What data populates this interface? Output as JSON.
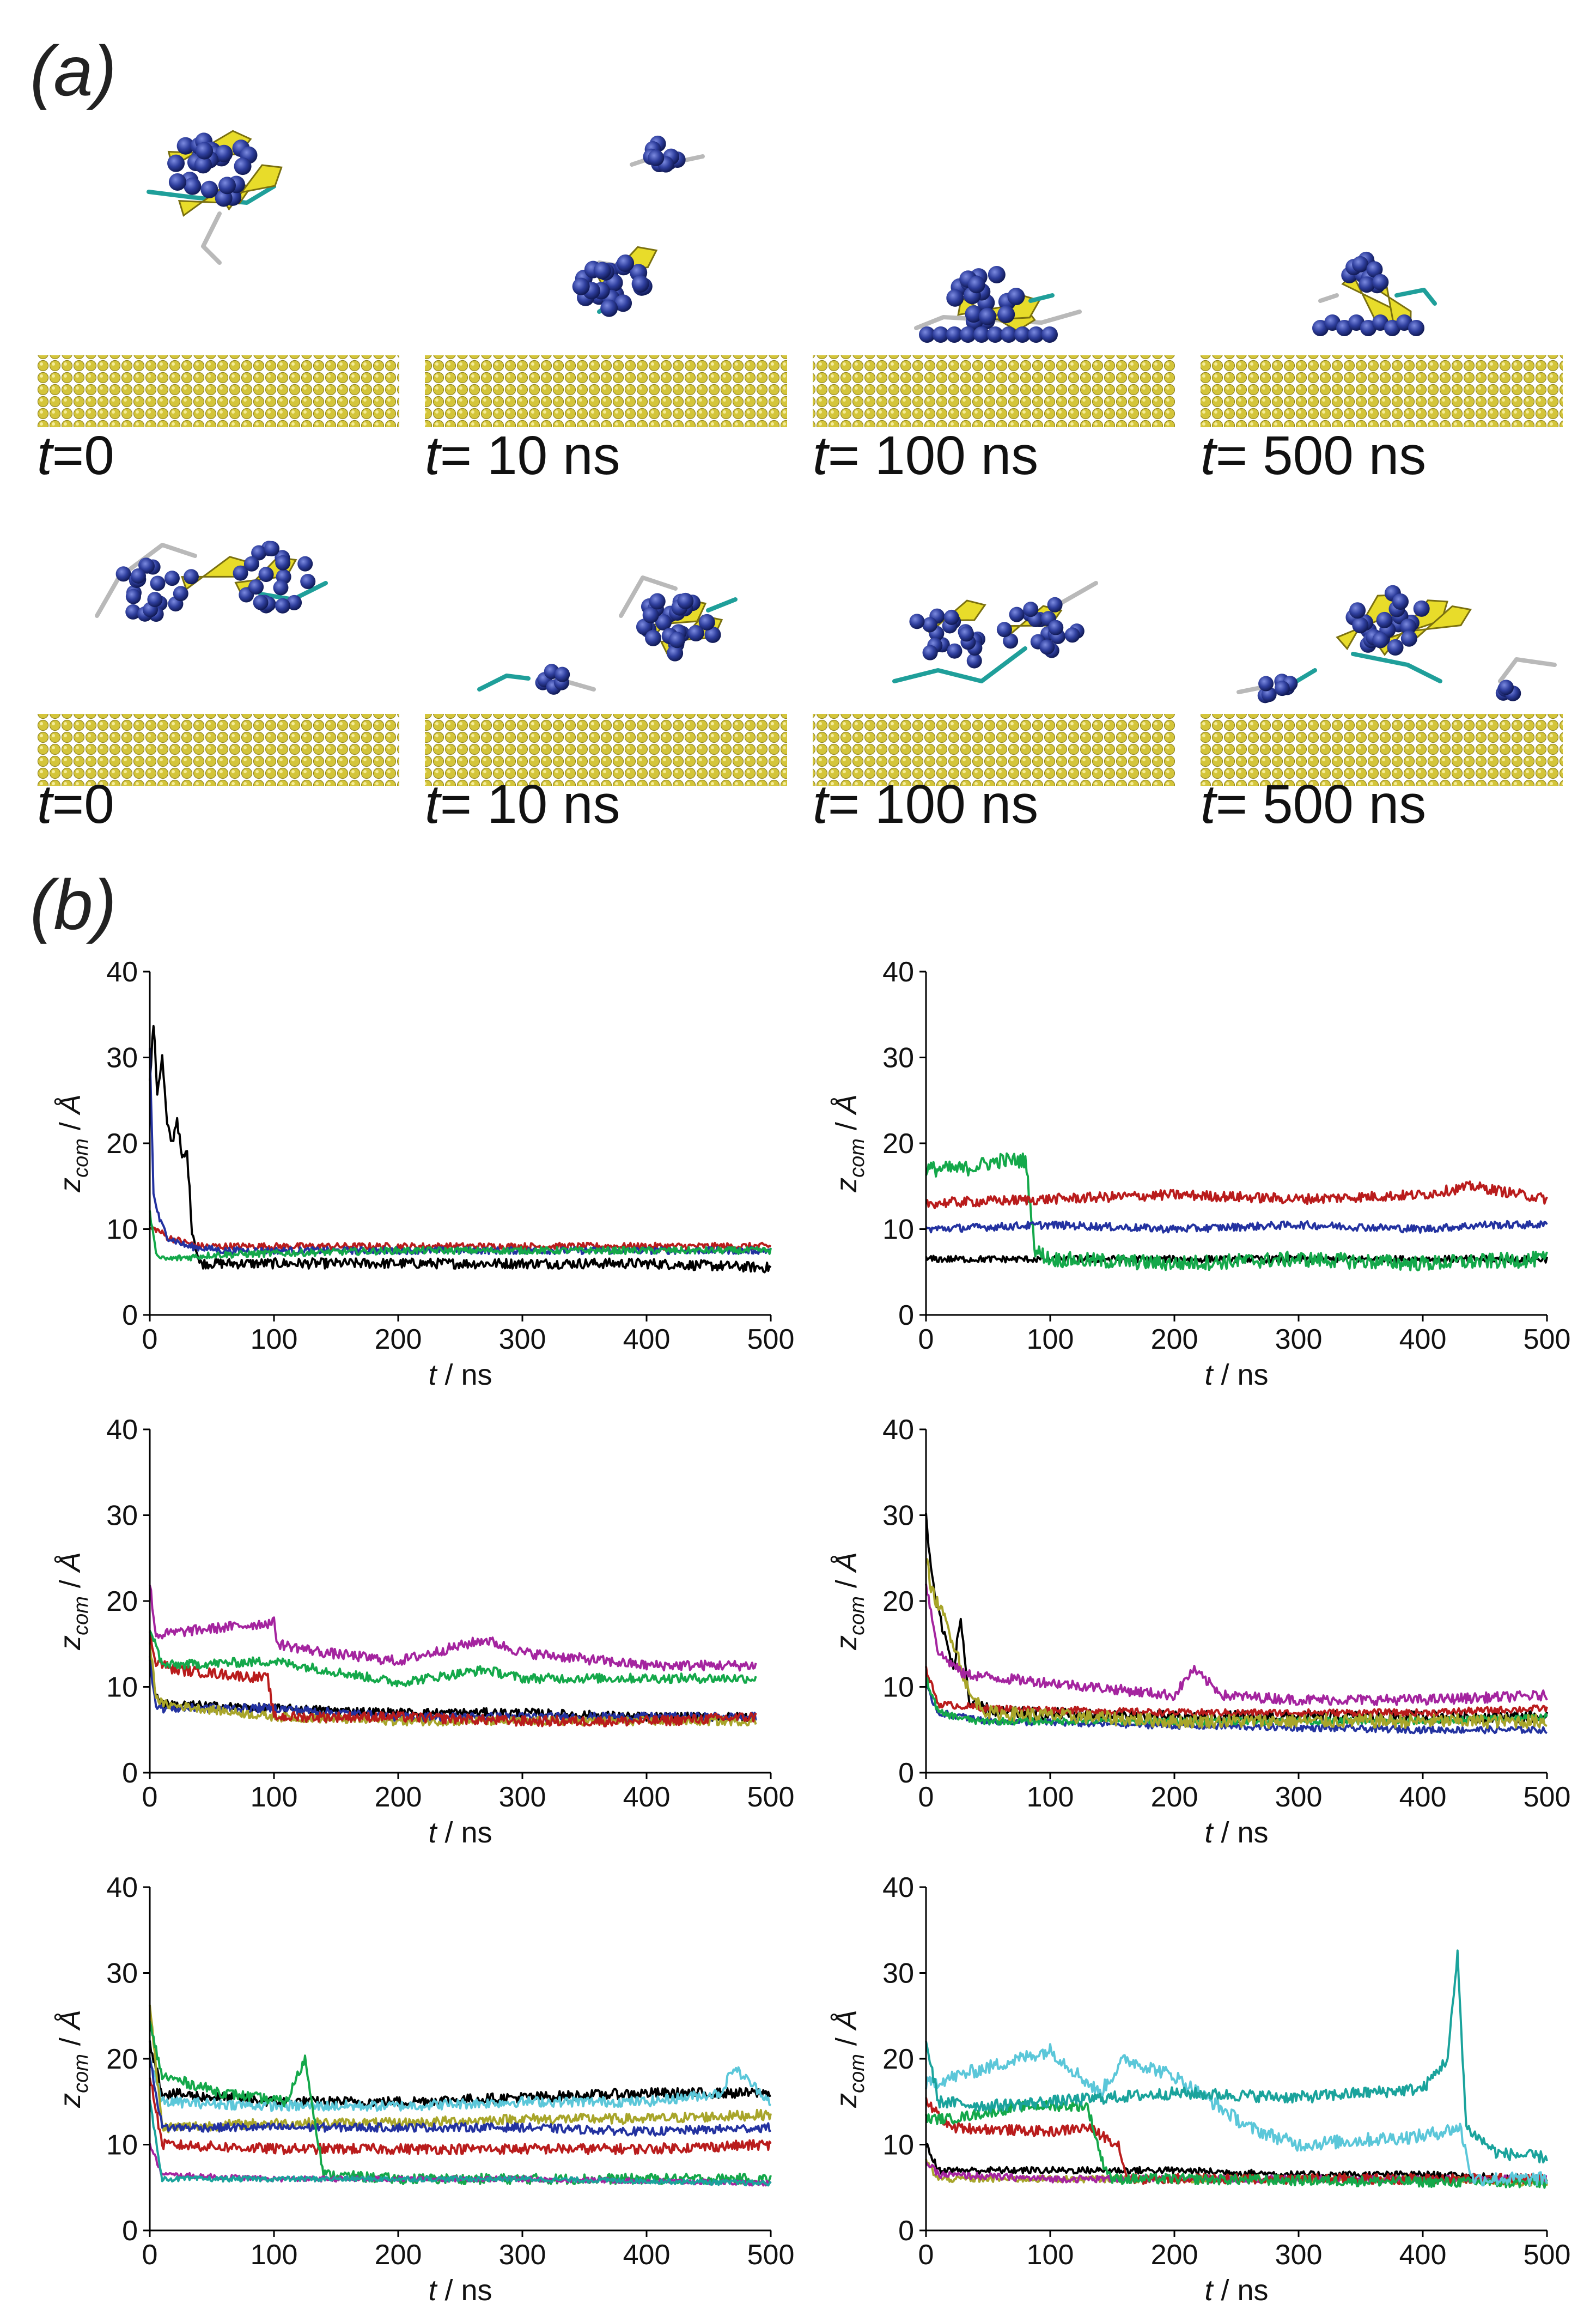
{
  "figure": {
    "panel_a_label": "(a)",
    "panel_b_label": "(b)"
  },
  "snapshots": {
    "rows": [
      {
        "frames": [
          {
            "var": "t",
            "value": "=0",
            "cluster": "compact-sheet"
          },
          {
            "var": "t",
            "value": "= 10 ns",
            "cluster": "split-peptide"
          },
          {
            "var": "t",
            "value": "= 100 ns",
            "cluster": "flat-adsorbed"
          },
          {
            "var": "t",
            "value": "= 500 ns",
            "cluster": "tower-adsorbed"
          }
        ]
      },
      {
        "frames": [
          {
            "var": "t",
            "value": "=0",
            "cluster": "extended-pair"
          },
          {
            "var": "t",
            "value": "= 10 ns",
            "cluster": "detached-peptide"
          },
          {
            "var": "t",
            "value": "= 100 ns",
            "cluster": "spread-adsorbed"
          },
          {
            "var": "t",
            "value": "= 500 ns",
            "cluster": "scattered-adsorbed"
          }
        ]
      }
    ],
    "colors": {
      "surface_atom": "#d4c53a",
      "residue_bead": "#2f3f9e",
      "strand": "#e8dc2a",
      "coil": "#b9b9b9",
      "turn": "#1f9f9a"
    }
  },
  "chart_data": [
    {
      "type": "line",
      "id": "b1",
      "xlabel": "t / ns",
      "ylabel": "z_com / Å",
      "xlim": [
        0,
        500
      ],
      "ylim": [
        0,
        40
      ],
      "xticks": [
        "0",
        "100",
        "200",
        "300",
        "400",
        "500"
      ],
      "yticks": [
        "0",
        "10",
        "20",
        "30",
        "40"
      ],
      "series": [
        {
          "name": "black",
          "color": "#000000",
          "x": [
            0,
            3,
            6,
            10,
            14,
            18,
            22,
            26,
            30,
            34,
            40,
            60,
            100,
            200,
            300,
            400,
            500
          ],
          "y": [
            27,
            34,
            26,
            30,
            22,
            20,
            23,
            18,
            19,
            10,
            6,
            6,
            6,
            6,
            6,
            6,
            5.5
          ],
          "noise": 0.6
        },
        {
          "name": "red",
          "color": "#b91c1c",
          "x": [
            0,
            5,
            15,
            40,
            100,
            300,
            500
          ],
          "y": [
            10,
            10,
            9,
            8,
            8,
            8,
            8
          ],
          "noise": 0.4
        },
        {
          "name": "blue",
          "color": "#2332a0",
          "x": [
            0,
            3,
            8,
            15,
            30,
            60,
            200,
            500
          ],
          "y": [
            31,
            14,
            11,
            9,
            8,
            7.5,
            7.5,
            7.5
          ],
          "noise": 0.4
        },
        {
          "name": "green",
          "color": "#14a84a",
          "x": [
            0,
            4,
            8,
            15,
            50,
            200,
            350,
            500
          ],
          "y": [
            12,
            8,
            6.5,
            6.5,
            7,
            7.5,
            7.5,
            7.5
          ],
          "noise": 0.4
        }
      ]
    },
    {
      "type": "line",
      "id": "b2",
      "xlabel": "t / ns",
      "ylabel": "z_com / Å",
      "xlim": [
        0,
        500
      ],
      "ylim": [
        0,
        40
      ],
      "xticks": [
        "0",
        "100",
        "200",
        "300",
        "400",
        "500"
      ],
      "yticks": [
        "0",
        "10",
        "20",
        "30",
        "40"
      ],
      "series": [
        {
          "name": "black",
          "color": "#000000",
          "x": [
            0,
            90,
            120,
            300,
            500
          ],
          "y": [
            6.5,
            6.5,
            6.5,
            6.5,
            6.5
          ],
          "noise": 0.4
        },
        {
          "name": "green",
          "color": "#14a84a",
          "x": [
            0,
            30,
            60,
            80,
            88,
            100,
            200,
            300,
            400,
            500
          ],
          "y": [
            17,
            17,
            18,
            18,
            7.5,
            6.5,
            6,
            6.5,
            6,
            6.5
          ],
          "noise": 0.9
        },
        {
          "name": "red",
          "color": "#b91c1c",
          "x": [
            0,
            100,
            200,
            300,
            400,
            440,
            500
          ],
          "y": [
            13,
            13.5,
            14,
            13.5,
            14,
            15,
            13.5
          ],
          "noise": 0.6
        },
        {
          "name": "blue",
          "color": "#2332a0",
          "x": [
            0,
            100,
            200,
            300,
            400,
            450,
            500
          ],
          "y": [
            10,
            10.5,
            10,
            10.5,
            10,
            10.5,
            10.5
          ],
          "noise": 0.45
        }
      ]
    },
    {
      "type": "line",
      "id": "b3",
      "xlabel": "t / ns",
      "ylabel": "z_com / Å",
      "xlim": [
        0,
        500
      ],
      "ylim": [
        0,
        40
      ],
      "xticks": [
        "0",
        "100",
        "200",
        "300",
        "400",
        "500"
      ],
      "yticks": [
        "0",
        "10",
        "20",
        "30",
        "40"
      ],
      "series": [
        {
          "name": "black",
          "color": "#000000",
          "x": [
            0,
            5,
            10,
            100,
            200,
            300,
            400,
            488
          ],
          "y": [
            14,
            9,
            8,
            7.5,
            7,
            7,
            6.5,
            6.5
          ],
          "noise": 0.5
        },
        {
          "name": "blue",
          "color": "#2332a0",
          "x": [
            0,
            5,
            10,
            100,
            200,
            300,
            400,
            488
          ],
          "y": [
            13,
            8,
            7.5,
            7.5,
            6.5,
            6.5,
            6.5,
            6.5
          ],
          "noise": 0.5
        },
        {
          "name": "olive",
          "color": "#a8a52a",
          "x": [
            0,
            5,
            10,
            100,
            200,
            300,
            400,
            488
          ],
          "y": [
            15,
            9,
            8,
            6.5,
            6,
            6,
            6,
            6
          ],
          "noise": 0.5
        },
        {
          "name": "red",
          "color": "#b91c1c",
          "x": [
            0,
            5,
            20,
            95,
            100,
            200,
            300,
            400,
            488
          ],
          "y": [
            16,
            13,
            12,
            11,
            6.5,
            6.5,
            6,
            6,
            6.5
          ],
          "noise": 0.6
        },
        {
          "name": "green",
          "color": "#14a84a",
          "x": [
            0,
            10,
            100,
            200,
            270,
            300,
            400,
            488
          ],
          "y": [
            17,
            12.5,
            13,
            10.5,
            12,
            11,
            11,
            11
          ],
          "noise": 0.55
        },
        {
          "name": "magenta",
          "color": "#a4249f",
          "x": [
            0,
            5,
            30,
            100,
            103,
            140,
            200,
            270,
            300,
            400,
            488
          ],
          "y": [
            22,
            16,
            16.5,
            17.5,
            15,
            14,
            13,
            15.5,
            14,
            12.5,
            12.5
          ],
          "noise": 0.6
        }
      ]
    },
    {
      "type": "line",
      "id": "b4",
      "xlabel": "t / ns",
      "ylabel": "z_com / Å",
      "xlim": [
        0,
        500
      ],
      "ylim": [
        0,
        40
      ],
      "xticks": [
        "0",
        "100",
        "200",
        "300",
        "400",
        "500"
      ],
      "yticks": [
        "0",
        "10",
        "20",
        "30",
        "40"
      ],
      "series": [
        {
          "name": "black",
          "color": "#000000",
          "x": [
            0,
            3,
            8,
            15,
            22,
            28,
            35,
            60,
            200,
            500
          ],
          "y": [
            30,
            25,
            20,
            16,
            12,
            18,
            8,
            7,
            6.5,
            6.5
          ],
          "noise": 0.7
        },
        {
          "name": "blue",
          "color": "#2332a0",
          "x": [
            0,
            10,
            50,
            200,
            400,
            500
          ],
          "y": [
            10,
            7,
            6,
            5.5,
            5,
            5
          ],
          "noise": 0.4
        },
        {
          "name": "red",
          "color": "#b91c1c",
          "x": [
            0,
            10,
            50,
            200,
            400,
            500
          ],
          "y": [
            12,
            8,
            7.5,
            7,
            7,
            7.5
          ],
          "noise": 0.4
        },
        {
          "name": "green",
          "color": "#14a84a",
          "x": [
            0,
            10,
            40,
            200,
            400,
            500
          ],
          "y": [
            11,
            7,
            6,
            6,
            6,
            6.5
          ],
          "noise": 0.4
        },
        {
          "name": "olive",
          "color": "#a8a52a",
          "x": [
            0,
            5,
            15,
            25,
            35,
            50,
            200,
            400,
            500
          ],
          "y": [
            25,
            21,
            18,
            14,
            9,
            7,
            6,
            6,
            6
          ],
          "noise": 0.8
        },
        {
          "name": "magenta",
          "color": "#a4249f",
          "x": [
            0,
            10,
            30,
            60,
            100,
            200,
            215,
            240,
            300,
            400,
            500
          ],
          "y": [
            22,
            14,
            11.5,
            11,
            10.5,
            9,
            12,
            9,
            8.5,
            8.5,
            9
          ],
          "noise": 0.6
        }
      ]
    },
    {
      "type": "line",
      "id": "b5",
      "xlabel": "t / ns",
      "ylabel": "z_com / Å",
      "xlim": [
        0,
        500
      ],
      "ylim": [
        0,
        40
      ],
      "xticks": [
        "0",
        "100",
        "200",
        "300",
        "400",
        "500"
      ],
      "yticks": [
        "0",
        "10",
        "20",
        "30",
        "40"
      ],
      "series": [
        {
          "name": "black",
          "color": "#000000",
          "x": [
            0,
            10,
            100,
            200,
            300,
            400,
            500
          ],
          "y": [
            22,
            16,
            15,
            15,
            15.5,
            16,
            16
          ],
          "noise": 0.6
        },
        {
          "name": "cyan",
          "color": "#5bc7d9",
          "x": [
            0,
            10,
            100,
            200,
            300,
            400,
            460,
            470,
            500
          ],
          "y": [
            20,
            15,
            14.5,
            14.5,
            15,
            15,
            16,
            19,
            15
          ],
          "noise": 0.6
        },
        {
          "name": "olive",
          "color": "#a8a52a",
          "x": [
            0,
            10,
            100,
            200,
            300,
            400,
            500
          ],
          "y": [
            26,
            12,
            12.5,
            12.5,
            13,
            13,
            13.5
          ],
          "noise": 0.6
        },
        {
          "name": "blue",
          "color": "#2332a0",
          "x": [
            0,
            10,
            100,
            200,
            300,
            400,
            500
          ],
          "y": [
            20,
            12,
            12,
            12,
            12,
            11.5,
            12
          ],
          "noise": 0.5
        },
        {
          "name": "red",
          "color": "#b91c1c",
          "x": [
            0,
            10,
            100,
            200,
            300,
            400,
            500
          ],
          "y": [
            18,
            10,
            9.5,
            9.5,
            9.5,
            9.5,
            10
          ],
          "noise": 0.6
        },
        {
          "name": "green",
          "color": "#14a84a",
          "x": [
            0,
            10,
            60,
            110,
            125,
            140,
            200,
            300,
            400,
            500
          ],
          "y": [
            24,
            18,
            16,
            15,
            20,
            6.5,
            6,
            6,
            6,
            6
          ],
          "noise": 0.6
        },
        {
          "name": "magenta",
          "color": "#a4249f",
          "x": [
            0,
            10,
            100,
            300,
            500
          ],
          "y": [
            10,
            6.5,
            6,
            6,
            5.5
          ],
          "noise": 0.3
        },
        {
          "name": "teal",
          "color": "#1aa39c",
          "x": [
            0,
            10,
            100,
            300,
            500
          ],
          "y": [
            15,
            6,
            6,
            6,
            5.5
          ],
          "noise": 0.3
        }
      ]
    },
    {
      "type": "line",
      "id": "b6",
      "xlabel": "t / ns",
      "ylabel": "z_com / Å",
      "xlim": [
        0,
        500
      ],
      "ylim": [
        0,
        40
      ],
      "xticks": [
        "0",
        "100",
        "200",
        "300",
        "400",
        "500"
      ],
      "yticks": [
        "0",
        "10",
        "20",
        "30",
        "40"
      ],
      "series": [
        {
          "name": "black",
          "color": "#000000",
          "x": [
            0,
            10,
            100,
            200,
            300,
            400,
            500
          ],
          "y": [
            10,
            7,
            7,
            7,
            6.5,
            6.5,
            6
          ],
          "noise": 0.4
        },
        {
          "name": "olive",
          "color": "#a8a52a",
          "x": [
            0,
            10,
            100,
            200,
            300,
            400,
            500
          ],
          "y": [
            8,
            6,
            6,
            6,
            6,
            6,
            5.5
          ],
          "noise": 0.4
        },
        {
          "name": "magenta",
          "color": "#a4249f",
          "x": [
            0,
            10,
            100,
            200,
            300,
            400,
            500
          ],
          "y": [
            8,
            6.5,
            6,
            6,
            6,
            6,
            6
          ],
          "noise": 0.4
        },
        {
          "name": "red",
          "color": "#b91c1c",
          "x": [
            0,
            20,
            100,
            130,
            155,
            162,
            200,
            500
          ],
          "y": [
            15,
            12,
            11.5,
            12,
            10,
            6,
            6,
            6
          ],
          "noise": 0.6
        },
        {
          "name": "green",
          "color": "#14a84a",
          "x": [
            0,
            20,
            80,
            130,
            142,
            150,
            200,
            500
          ],
          "y": [
            13,
            13,
            14.5,
            14.5,
            8,
            6,
            6,
            5.5
          ],
          "noise": 0.6
        },
        {
          "name": "cyan",
          "color": "#5bc7d9",
          "x": [
            0,
            50,
            100,
            140,
            160,
            200,
            260,
            300,
            400,
            430,
            440,
            480,
            500
          ],
          "y": [
            17,
            19,
            21,
            16,
            20,
            18,
            12,
            10,
            11,
            12,
            6,
            6,
            6
          ],
          "noise": 0.8
        },
        {
          "name": "teal",
          "color": "#1aa39c",
          "x": [
            0,
            10,
            50,
            100,
            200,
            300,
            400,
            420,
            428,
            435,
            460,
            500
          ],
          "y": [
            22,
            15,
            14.5,
            15,
            16,
            15.5,
            16.5,
            20,
            32,
            12,
            9,
            8.5
          ],
          "noise": 0.7
        }
      ]
    }
  ]
}
